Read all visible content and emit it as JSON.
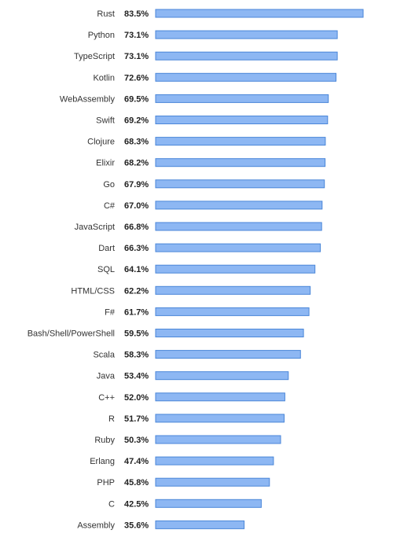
{
  "chart_data": {
    "type": "bar",
    "orientation": "horizontal",
    "categories": [
      "Rust",
      "Python",
      "TypeScript",
      "Kotlin",
      "WebAssembly",
      "Swift",
      "Clojure",
      "Elixir",
      "Go",
      "C#",
      "JavaScript",
      "Dart",
      "SQL",
      "HTML/CSS",
      "F#",
      "Bash/Shell/PowerShell",
      "Scala",
      "Java",
      "C++",
      "R",
      "Ruby",
      "Erlang",
      "PHP",
      "C",
      "Assembly"
    ],
    "values": [
      83.5,
      73.1,
      73.1,
      72.6,
      69.5,
      69.2,
      68.3,
      68.2,
      67.9,
      67.0,
      66.8,
      66.3,
      64.1,
      62.2,
      61.7,
      59.5,
      58.3,
      53.4,
      52.0,
      51.7,
      50.3,
      47.4,
      45.8,
      42.5,
      35.6
    ],
    "value_labels": [
      "83.5%",
      "73.1%",
      "73.1%",
      "72.6%",
      "69.5%",
      "69.2%",
      "68.3%",
      "68.2%",
      "67.9%",
      "67.0%",
      "66.8%",
      "66.3%",
      "64.1%",
      "62.2%",
      "61.7%",
      "59.5%",
      "58.3%",
      "53.4%",
      "52.0%",
      "51.7%",
      "50.3%",
      "47.4%",
      "45.8%",
      "42.5%",
      "35.6%"
    ],
    "title": "",
    "xlabel": "",
    "ylabel": "",
    "xlim": [
      0,
      100
    ],
    "grid": false,
    "bar_color": "#8db7f3",
    "bar_edge_color": "#4a86d8"
  }
}
